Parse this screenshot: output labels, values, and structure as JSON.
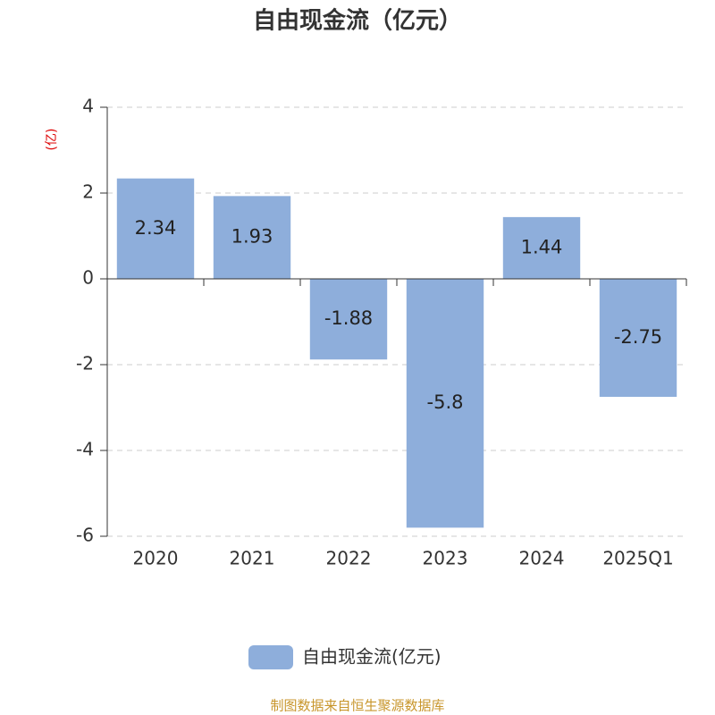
{
  "chart_data": {
    "type": "bar",
    "title": "自由现金流（亿元）",
    "y_label": "(亿)",
    "categories": [
      "2020",
      "2021",
      "2022",
      "2023",
      "2024",
      "2025Q1"
    ],
    "series": [
      {
        "name": "自由现金流(亿元)",
        "color": "#8eaedb",
        "values": [
          2.34,
          1.93,
          -1.88,
          -5.8,
          1.44,
          -2.75
        ]
      }
    ],
    "ylim": [
      -6,
      4
    ],
    "yticks": [
      -6,
      -4,
      -2,
      0,
      2,
      4
    ],
    "grid": true,
    "legend": "bottom",
    "source": "制图数据来自恒生聚源数据库"
  }
}
